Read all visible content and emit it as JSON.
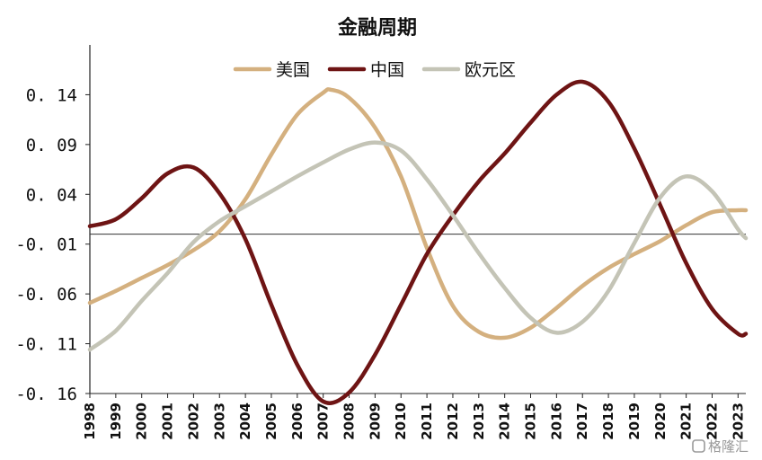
{
  "chart_data": {
    "type": "line",
    "title": "金融周期",
    "xlabel": "",
    "ylabel": "",
    "ylim": [
      -0.16,
      0.19
    ],
    "yticks": [
      0.14,
      0.09,
      0.04,
      -0.01,
      -0.06,
      -0.11,
      -0.16
    ],
    "ytick_labels": [
      "0. 14",
      "0. 09",
      "0. 04",
      "-0. 01",
      "-0. 06",
      "-0. 11",
      "-0. 16"
    ],
    "xlim": [
      1998,
      2023.3
    ],
    "xticks": [
      1998,
      1999,
      2000,
      2001,
      2002,
      2003,
      2004,
      2005,
      2006,
      2007,
      2008,
      2009,
      2010,
      2011,
      2012,
      2013,
      2014,
      2015,
      2016,
      2017,
      2018,
      2019,
      2020,
      2021,
      2022,
      2023
    ],
    "zero_line": 0,
    "legend_position": "top-center",
    "grid": false,
    "series": [
      {
        "name": "美国",
        "color": "#d4b07f",
        "x": [
          1998,
          1999,
          2000,
          2001,
          2002,
          2003,
          2004,
          2005,
          2006,
          2007,
          2007.3,
          2008,
          2009,
          2010,
          2011,
          2012,
          2013,
          2014,
          2015,
          2016,
          2017,
          2018,
          2019,
          2020,
          2021,
          2022,
          2023,
          2023.3
        ],
        "y": [
          -0.069,
          -0.057,
          -0.044,
          -0.031,
          -0.016,
          0.003,
          0.035,
          0.08,
          0.12,
          0.142,
          0.145,
          0.137,
          0.107,
          0.058,
          -0.014,
          -0.072,
          -0.098,
          -0.104,
          -0.094,
          -0.074,
          -0.052,
          -0.034,
          -0.02,
          -0.007,
          0.009,
          0.022,
          0.024,
          0.024
        ]
      },
      {
        "name": "中国",
        "color": "#6e1414",
        "x": [
          1998,
          1999,
          2000,
          2001,
          2002,
          2003,
          2004,
          2005,
          2006,
          2007,
          2008,
          2009,
          2010,
          2011,
          2012,
          2013,
          2014,
          2015,
          2016,
          2017,
          2018,
          2019,
          2020,
          2021,
          2022,
          2023,
          2023.3
        ],
        "y": [
          0.008,
          0.015,
          0.036,
          0.061,
          0.067,
          0.041,
          -0.005,
          -0.071,
          -0.131,
          -0.168,
          -0.159,
          -0.121,
          -0.071,
          -0.02,
          0.019,
          0.053,
          0.081,
          0.112,
          0.14,
          0.153,
          0.133,
          0.086,
          0.029,
          -0.029,
          -0.075,
          -0.1,
          -0.1
        ]
      },
      {
        "name": "欧元区",
        "color": "#c4c4b6",
        "x": [
          1998,
          1999,
          2000,
          2001,
          2002,
          2003,
          2004,
          2005,
          2006,
          2007,
          2008,
          2009,
          2010,
          2011,
          2012,
          2013,
          2014,
          2015,
          2016,
          2017,
          2018,
          2019,
          2020,
          2021,
          2022,
          2023,
          2023.3
        ],
        "y": [
          -0.116,
          -0.097,
          -0.067,
          -0.039,
          -0.008,
          0.013,
          0.028,
          0.043,
          0.058,
          0.072,
          0.085,
          0.092,
          0.084,
          0.055,
          0.019,
          -0.019,
          -0.054,
          -0.084,
          -0.099,
          -0.088,
          -0.057,
          -0.009,
          0.037,
          0.058,
          0.043,
          0.005,
          -0.004
        ]
      }
    ]
  },
  "watermark": {
    "icon": "gelonghui-logo-icon",
    "text": "格隆汇"
  }
}
